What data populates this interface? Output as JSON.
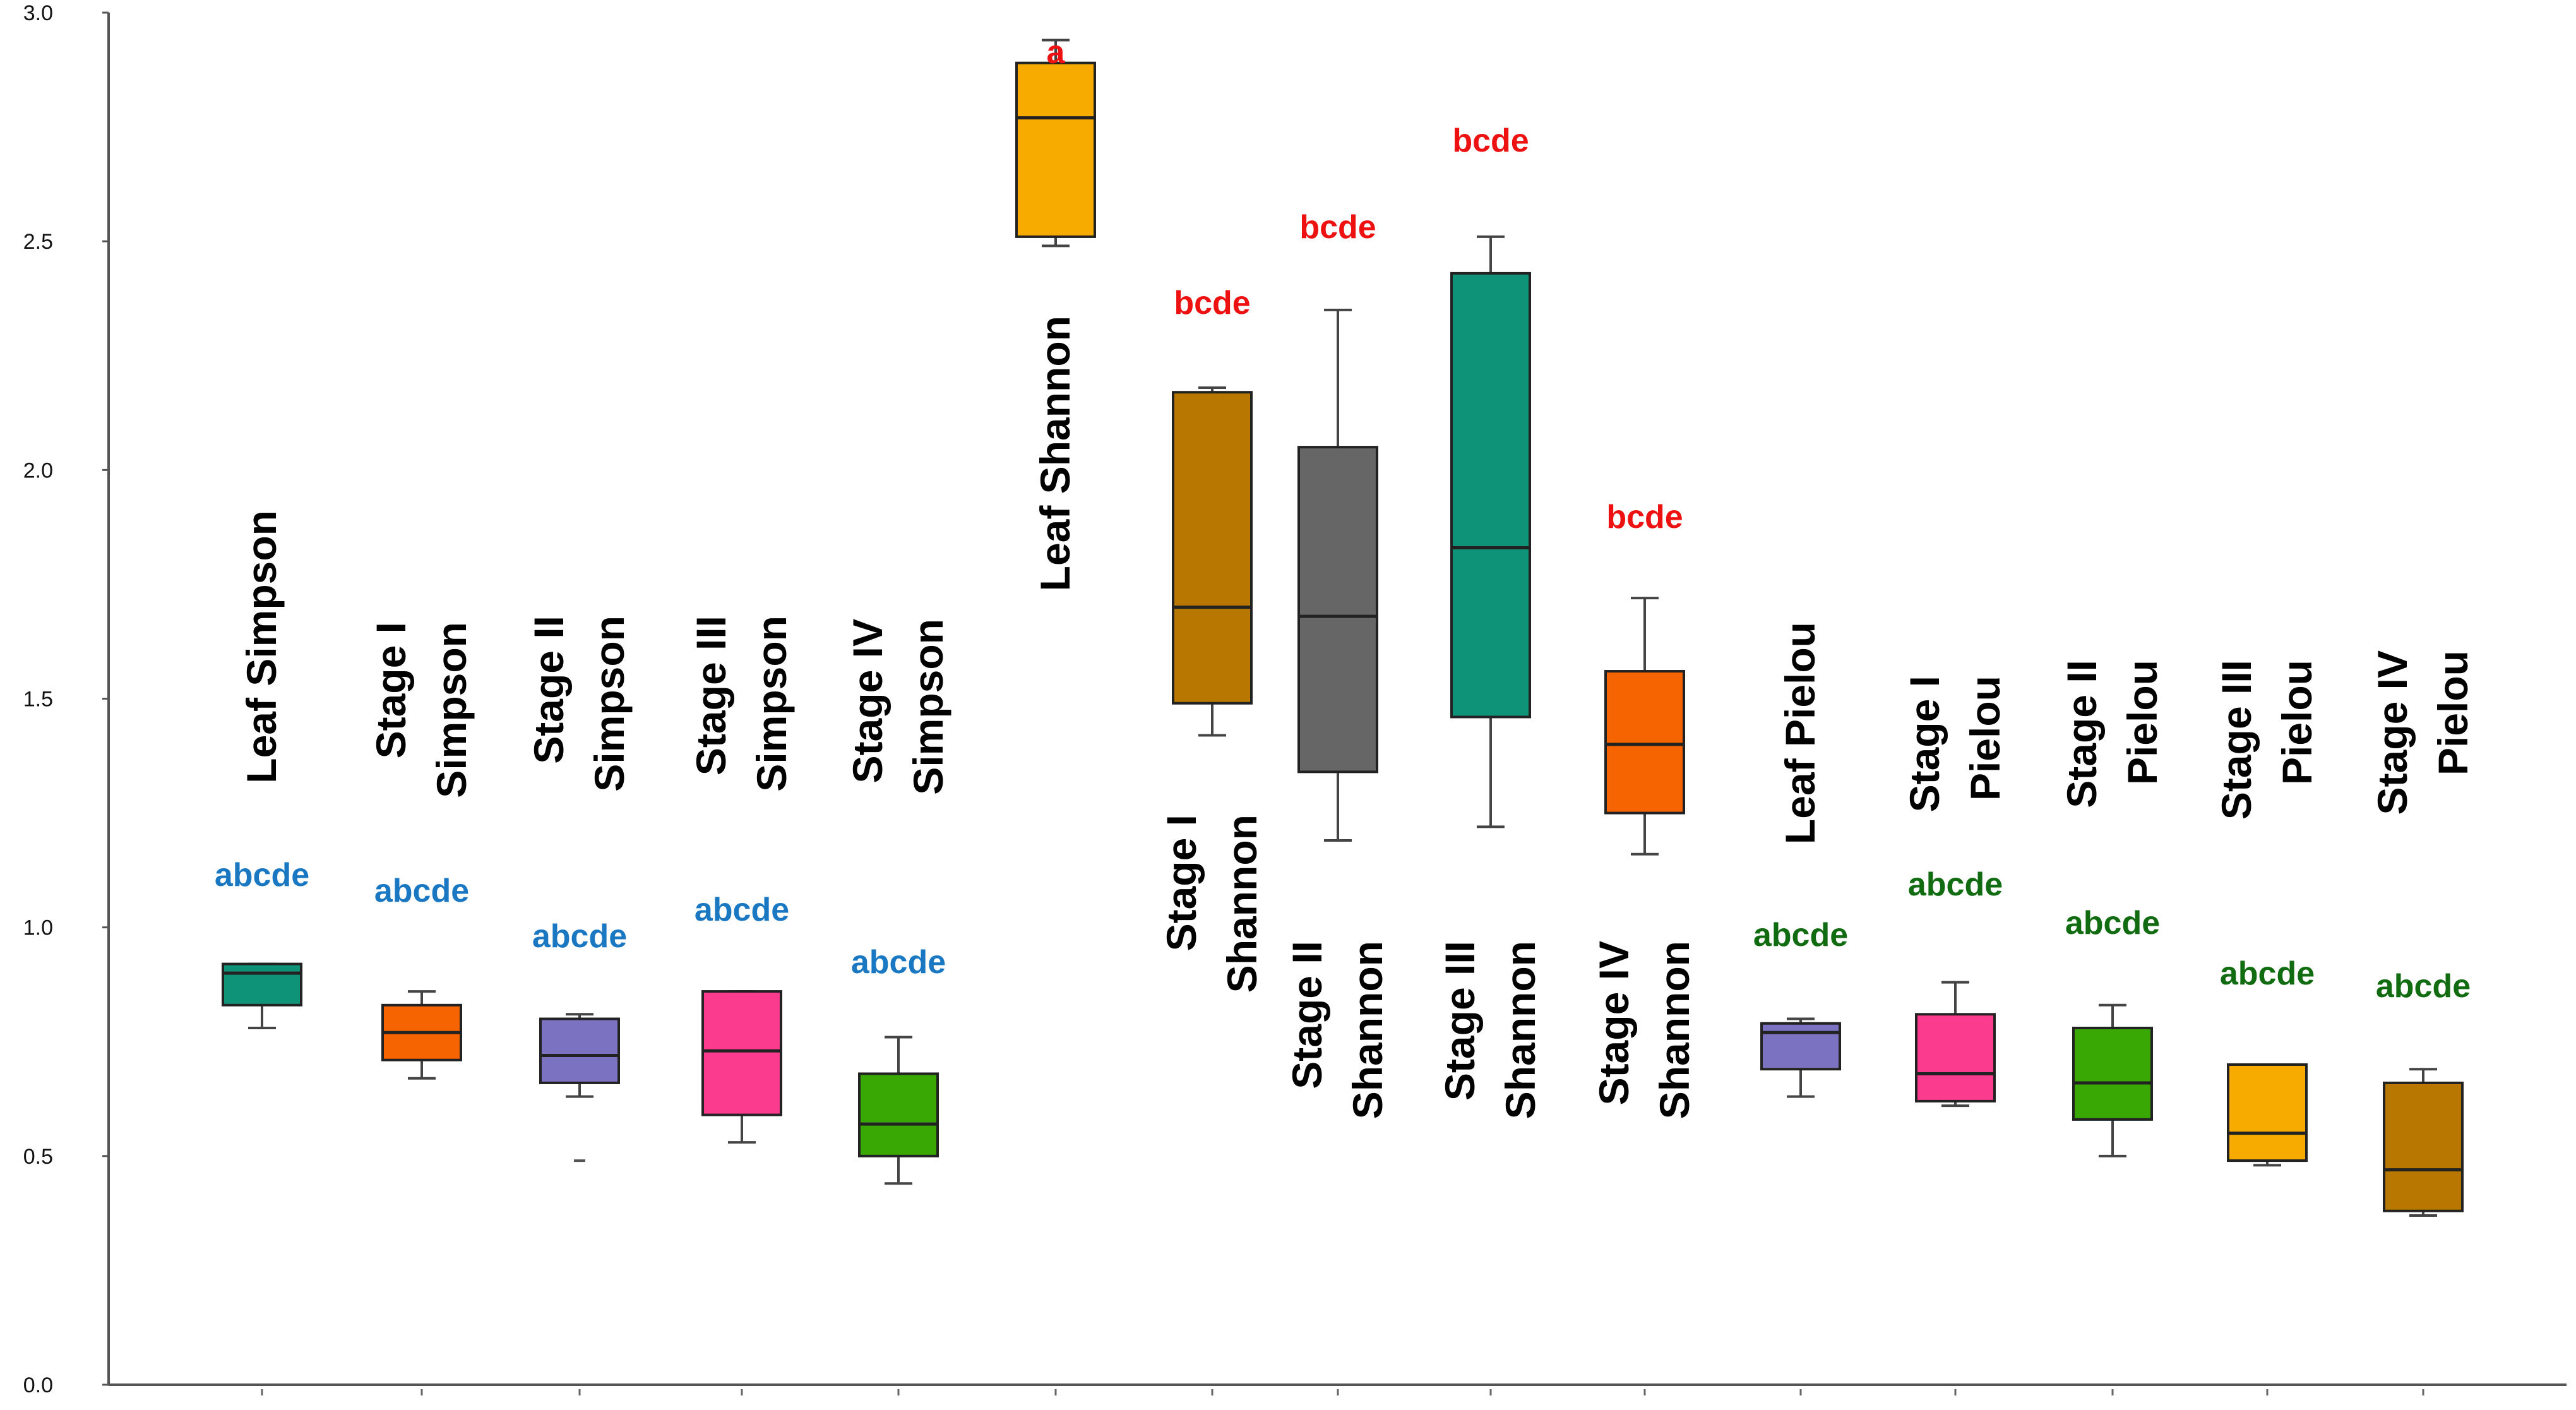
{
  "chart_data": {
    "type": "box",
    "title": "",
    "xlabel": "",
    "ylabel": "",
    "ylim": [
      0,
      3.0
    ],
    "yticks": [
      "0.0",
      "0.5",
      "1.0",
      "1.5",
      "2.0",
      "2.5",
      "3.0"
    ],
    "grid": false,
    "legend": "none",
    "series": [
      {
        "label": [
          "Leaf Simpson"
        ],
        "color": "#0e9378",
        "min": 0.78,
        "q1": 0.83,
        "median": 0.9,
        "q3": 0.92,
        "max": 0.92,
        "outliers": [],
        "letters": "abcde",
        "letter_color": "#1a78c2"
      },
      {
        "label": [
          "Stage I",
          "Simpson"
        ],
        "color": "#f56400",
        "min": 0.67,
        "q1": 0.71,
        "median": 0.77,
        "q3": 0.83,
        "max": 0.86,
        "outliers": [],
        "letters": "abcde",
        "letter_color": "#1a78c2"
      },
      {
        "label": [
          "Stage II",
          "Simpson"
        ],
        "color": "#7b72c2",
        "min": 0.63,
        "q1": 0.66,
        "median": 0.72,
        "q3": 0.8,
        "max": 0.81,
        "outliers": [
          0.49
        ],
        "letters": "abcde",
        "letter_color": "#1a78c2"
      },
      {
        "label": [
          "Stage III",
          "Simpson"
        ],
        "color": "#fb3b8e",
        "min": 0.53,
        "q1": 0.59,
        "median": 0.73,
        "q3": 0.86,
        "max": 0.86,
        "outliers": [],
        "letters": "abcde",
        "letter_color": "#1a78c2"
      },
      {
        "label": [
          "Stage IV",
          "Simpson"
        ],
        "color": "#39a805",
        "min": 0.44,
        "q1": 0.5,
        "median": 0.57,
        "q3": 0.68,
        "max": 0.76,
        "outliers": [],
        "letters": "abcde",
        "letter_color": "#1a78c2"
      },
      {
        "label": [
          "Leaf Shannon"
        ],
        "color": "#f7aa00",
        "min": 2.49,
        "q1": 2.51,
        "median": 2.77,
        "q3": 2.89,
        "max": 2.94,
        "outliers": [],
        "letters": "a",
        "letter_color": "#ee1111"
      },
      {
        "label": [
          "Stage I",
          "Shannon"
        ],
        "color": "#b87700",
        "min": 1.42,
        "q1": 1.49,
        "median": 1.7,
        "q3": 2.17,
        "max": 2.18,
        "outliers": [],
        "letters": "bcde",
        "letter_color": "#ee1111"
      },
      {
        "label": [
          "Stage II",
          "Shannon"
        ],
        "color": "#666666",
        "min": 1.19,
        "q1": 1.34,
        "median": 1.68,
        "q3": 2.05,
        "max": 2.35,
        "outliers": [],
        "letters": "bcde",
        "letter_color": "#ee1111"
      },
      {
        "label": [
          "Stage III",
          "Shannon"
        ],
        "color": "#0e9378",
        "min": 1.22,
        "q1": 1.46,
        "median": 1.83,
        "q3": 2.43,
        "max": 2.51,
        "outliers": [],
        "letters": "bcde",
        "letter_color": "#ee1111"
      },
      {
        "label": [
          "Stage IV",
          "Shannon"
        ],
        "color": "#f56400",
        "min": 1.16,
        "q1": 1.25,
        "median": 1.4,
        "q3": 1.56,
        "max": 1.72,
        "outliers": [],
        "letters": "bcde",
        "letter_color": "#ee1111"
      },
      {
        "label": [
          "Leaf Pielou"
        ],
        "color": "#7b72c2",
        "min": 0.63,
        "q1": 0.69,
        "median": 0.77,
        "q3": 0.79,
        "max": 0.8,
        "outliers": [],
        "letters": "abcde",
        "letter_color": "#116b11"
      },
      {
        "label": [
          "Stage I",
          "Pielou"
        ],
        "color": "#fb3b8e",
        "min": 0.61,
        "q1": 0.62,
        "median": 0.68,
        "q3": 0.81,
        "max": 0.88,
        "outliers": [],
        "letters": "abcde",
        "letter_color": "#116b11"
      },
      {
        "label": [
          "Stage II",
          "Pielou"
        ],
        "color": "#39a805",
        "min": 0.5,
        "q1": 0.58,
        "median": 0.66,
        "q3": 0.78,
        "max": 0.83,
        "outliers": [],
        "letters": "abcde",
        "letter_color": "#116b11"
      },
      {
        "label": [
          "Stage III",
          "Pielou"
        ],
        "color": "#f7aa00",
        "min": 0.48,
        "q1": 0.49,
        "median": 0.55,
        "q3": 0.7,
        "max": 0.7,
        "outliers": [],
        "letters": "abcde",
        "letter_color": "#116b11"
      },
      {
        "label": [
          "Stage IV",
          "Pielou"
        ],
        "color": "#b87700",
        "min": 0.37,
        "q1": 0.38,
        "median": 0.47,
        "q3": 0.66,
        "max": 0.69,
        "outliers": [],
        "letters": "abcde",
        "letter_color": "#116b11"
      }
    ]
  }
}
